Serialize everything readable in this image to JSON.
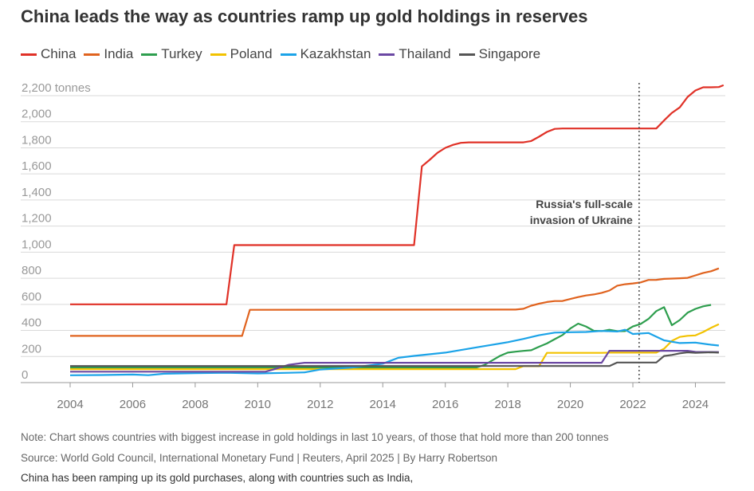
{
  "title": "China leads the way as countries ramp up gold holdings in reserves",
  "note": "Note: Chart shows countries with biggest increase in gold holdings in last 10 years, of those that hold more than 200 tonnes",
  "source": "Source: World Gold Council, International Monetary Fund | Reuters, April 2025 | By Harry Robertson",
  "caption": "China has been ramping up its gold purchases, along with countries such as India,",
  "chart_data": {
    "type": "line",
    "title": "China leads the way as countries ramp up gold holdings in reserves",
    "xlabel": "",
    "ylabel": "",
    "ylim": [
      0,
      2200
    ],
    "xlim": [
      2003.6,
      2024.9
    ],
    "grid": true,
    "legend_position": "top",
    "y_ticks": [
      0,
      200,
      400,
      600,
      800,
      1000,
      1200,
      1400,
      1600,
      1800,
      2000,
      2200
    ],
    "y_tick_labels": [
      "0",
      "200",
      "400",
      "600",
      "800",
      "1,000",
      "1,200",
      "1,400",
      "1,600",
      "1,800",
      "2,000",
      "2,200 tonnes"
    ],
    "x_ticks": [
      2004,
      2006,
      2008,
      2010,
      2012,
      2014,
      2016,
      2018,
      2020,
      2022,
      2024
    ],
    "x_tick_labels": [
      "2004",
      "2006",
      "2008",
      "2010",
      "2012",
      "2014",
      "2016",
      "2018",
      "2020",
      "2022",
      "2024"
    ],
    "annotation": {
      "x": 2022.2,
      "lines": [
        "Russia's full-scale",
        "invasion of Ukraine"
      ]
    },
    "series": [
      {
        "name": "China",
        "color": "#e03127",
        "points": [
          [
            2004,
            600
          ],
          [
            2009.0,
            600
          ],
          [
            2009.25,
            1054
          ],
          [
            2015.0,
            1054
          ],
          [
            2015.25,
            1658
          ],
          [
            2015.5,
            1708
          ],
          [
            2015.75,
            1762
          ],
          [
            2016.0,
            1800
          ],
          [
            2016.25,
            1823
          ],
          [
            2016.5,
            1838
          ],
          [
            2016.75,
            1842
          ],
          [
            2018.5,
            1842
          ],
          [
            2018.75,
            1852
          ],
          [
            2019.0,
            1885
          ],
          [
            2019.25,
            1922
          ],
          [
            2019.5,
            1945
          ],
          [
            2019.75,
            1948
          ],
          [
            2022.25,
            1948
          ],
          [
            2022.75,
            1948
          ],
          [
            2023.0,
            2010
          ],
          [
            2023.25,
            2068
          ],
          [
            2023.5,
            2110
          ],
          [
            2023.75,
            2190
          ],
          [
            2024.0,
            2240
          ],
          [
            2024.25,
            2264
          ],
          [
            2024.5,
            2264
          ],
          [
            2024.75,
            2266
          ],
          [
            2024.9,
            2280
          ]
        ]
      },
      {
        "name": "India",
        "color": "#e0631f",
        "points": [
          [
            2004,
            358
          ],
          [
            2009.5,
            358
          ],
          [
            2009.75,
            558
          ],
          [
            2018.25,
            560
          ],
          [
            2018.5,
            566
          ],
          [
            2018.75,
            590
          ],
          [
            2019.0,
            605
          ],
          [
            2019.25,
            618
          ],
          [
            2019.5,
            625
          ],
          [
            2019.75,
            626
          ],
          [
            2020.0,
            641
          ],
          [
            2020.25,
            656
          ],
          [
            2020.5,
            668
          ],
          [
            2020.75,
            676
          ],
          [
            2021.0,
            688
          ],
          [
            2021.25,
            706
          ],
          [
            2021.5,
            743
          ],
          [
            2021.75,
            754
          ],
          [
            2022.0,
            760
          ],
          [
            2022.25,
            768
          ],
          [
            2022.5,
            787
          ],
          [
            2022.75,
            788
          ],
          [
            2023.0,
            795
          ],
          [
            2023.5,
            800
          ],
          [
            2023.75,
            803
          ],
          [
            2024.0,
            822
          ],
          [
            2024.25,
            841
          ],
          [
            2024.5,
            854
          ],
          [
            2024.75,
            876
          ]
        ]
      },
      {
        "name": "Turkey",
        "color": "#2e9e4e",
        "points": [
          [
            2004,
            116
          ],
          [
            2017.0,
            116
          ],
          [
            2017.25,
            135
          ],
          [
            2017.5,
            170
          ],
          [
            2017.75,
            205
          ],
          [
            2018.0,
            230
          ],
          [
            2018.25,
            237
          ],
          [
            2018.5,
            243
          ],
          [
            2018.75,
            248
          ],
          [
            2019.0,
            275
          ],
          [
            2019.25,
            300
          ],
          [
            2019.5,
            333
          ],
          [
            2019.75,
            365
          ],
          [
            2020.0,
            415
          ],
          [
            2020.25,
            452
          ],
          [
            2020.5,
            430
          ],
          [
            2020.75,
            397
          ],
          [
            2021.0,
            395
          ],
          [
            2021.25,
            405
          ],
          [
            2021.5,
            394
          ],
          [
            2021.75,
            395
          ],
          [
            2022.0,
            430
          ],
          [
            2022.25,
            450
          ],
          [
            2022.5,
            488
          ],
          [
            2022.75,
            548
          ],
          [
            2023.0,
            578
          ],
          [
            2023.25,
            440
          ],
          [
            2023.5,
            480
          ],
          [
            2023.75,
            536
          ],
          [
            2024.0,
            565
          ],
          [
            2024.25,
            585
          ],
          [
            2024.5,
            596
          ]
        ]
      },
      {
        "name": "Poland",
        "color": "#f2c200",
        "points": [
          [
            2004,
            103
          ],
          [
            2018.25,
            103
          ],
          [
            2018.5,
            126
          ],
          [
            2019.0,
            126
          ],
          [
            2019.25,
            228
          ],
          [
            2021.0,
            228
          ],
          [
            2021.25,
            230
          ],
          [
            2022.75,
            230
          ],
          [
            2023.0,
            260
          ],
          [
            2023.25,
            320
          ],
          [
            2023.5,
            350
          ],
          [
            2023.75,
            359
          ],
          [
            2024.0,
            362
          ],
          [
            2024.25,
            388
          ],
          [
            2024.5,
            420
          ],
          [
            2024.75,
            448
          ]
        ]
      },
      {
        "name": "Kazakhstan",
        "color": "#1ba3e8",
        "points": [
          [
            2004,
            56
          ],
          [
            2005.0,
            58
          ],
          [
            2006.0,
            62
          ],
          [
            2006.5,
            57
          ],
          [
            2007.0,
            68
          ],
          [
            2008.0,
            73
          ],
          [
            2009.0,
            76
          ],
          [
            2010.0,
            70
          ],
          [
            2011.0,
            75
          ],
          [
            2011.5,
            78
          ],
          [
            2012.0,
            100
          ],
          [
            2013.0,
            115
          ],
          [
            2014.0,
            145
          ],
          [
            2014.5,
            190
          ],
          [
            2015.0,
            205
          ],
          [
            2016.0,
            230
          ],
          [
            2017.0,
            270
          ],
          [
            2018.0,
            310
          ],
          [
            2018.5,
            335
          ],
          [
            2019.0,
            363
          ],
          [
            2019.5,
            383
          ],
          [
            2020.0,
            386
          ],
          [
            2020.5,
            388
          ],
          [
            2021.0,
            396
          ],
          [
            2021.5,
            392
          ],
          [
            2021.75,
            405
          ],
          [
            2022.0,
            373
          ],
          [
            2022.5,
            380
          ],
          [
            2023.0,
            324
          ],
          [
            2023.5,
            303
          ],
          [
            2024.0,
            307
          ],
          [
            2024.5,
            290
          ],
          [
            2024.75,
            284
          ]
        ]
      },
      {
        "name": "Thailand",
        "color": "#6b48a3",
        "points": [
          [
            2004,
            84
          ],
          [
            2010.25,
            84
          ],
          [
            2010.5,
            100
          ],
          [
            2011.0,
            137
          ],
          [
            2011.5,
            152
          ],
          [
            2021.0,
            152
          ],
          [
            2021.25,
            244
          ],
          [
            2023.75,
            244
          ],
          [
            2024.0,
            235
          ],
          [
            2024.75,
            234
          ]
        ]
      },
      {
        "name": "Singapore",
        "color": "#555555",
        "points": [
          [
            2004,
            127
          ],
          [
            2021.25,
            127
          ],
          [
            2021.5,
            154
          ],
          [
            2022.75,
            154
          ],
          [
            2023.0,
            204
          ],
          [
            2023.25,
            212
          ],
          [
            2023.5,
            224
          ],
          [
            2023.75,
            232
          ],
          [
            2024.0,
            228
          ],
          [
            2024.5,
            232
          ],
          [
            2024.75,
            230
          ]
        ]
      }
    ]
  }
}
